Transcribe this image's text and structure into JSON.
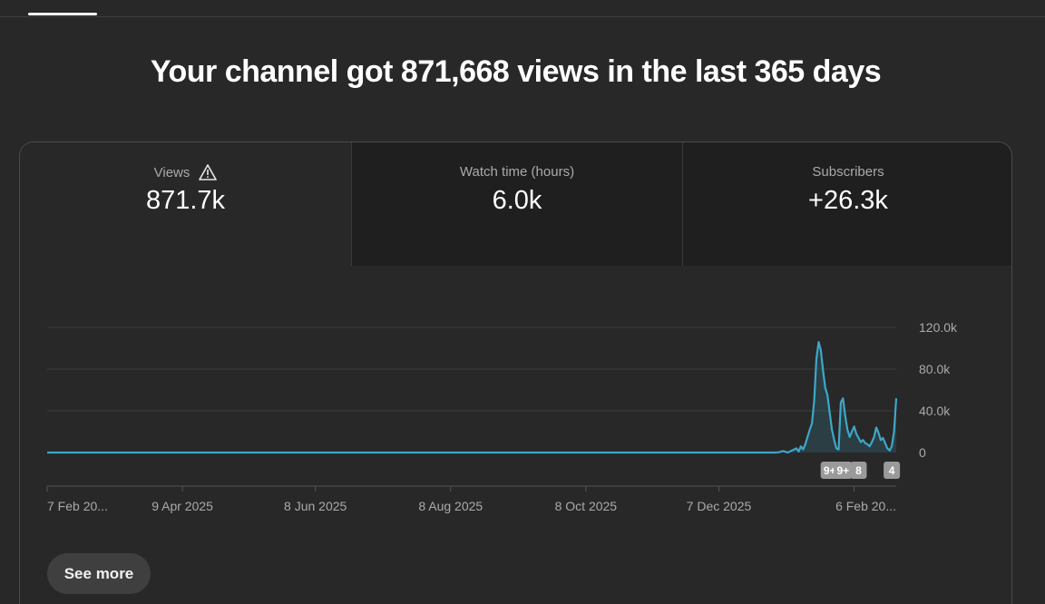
{
  "headline": "Your channel got 871,668 views in the last 365 days",
  "metrics": [
    {
      "label": "Views",
      "value": "871.7k",
      "warning_icon": "warning-triangle-icon",
      "active": true
    },
    {
      "label": "Watch time (hours)",
      "value": "6.0k",
      "active": false
    },
    {
      "label": "Subscribers",
      "value": "+26.3k",
      "active": false
    }
  ],
  "chart_data": {
    "type": "area",
    "series": [
      {
        "values": [
          [
            0,
            0
          ],
          [
            328,
            0
          ],
          [
            330,
            300
          ],
          [
            332,
            1500
          ],
          [
            334,
            0
          ],
          [
            336,
            2000
          ],
          [
            338,
            4000
          ],
          [
            339,
            1000
          ],
          [
            340,
            6000
          ],
          [
            341,
            3000
          ],
          [
            342,
            8000
          ],
          [
            343,
            15000
          ],
          [
            344,
            22000
          ],
          [
            345,
            28000
          ],
          [
            346,
            50000
          ],
          [
            347,
            90000
          ],
          [
            348,
            106000
          ],
          [
            349,
            98000
          ],
          [
            350,
            78000
          ],
          [
            351,
            62000
          ],
          [
            352,
            55000
          ],
          [
            353,
            38000
          ],
          [
            354,
            22000
          ],
          [
            355,
            12000
          ],
          [
            356,
            4000
          ],
          [
            357,
            3000
          ],
          [
            358,
            48000
          ],
          [
            359,
            52000
          ],
          [
            360,
            35000
          ],
          [
            361,
            22000
          ],
          [
            362,
            15000
          ],
          [
            363,
            20000
          ],
          [
            364,
            25000
          ],
          [
            365,
            18000
          ],
          [
            366,
            14000
          ],
          [
            367,
            10000
          ],
          [
            368,
            12000
          ],
          [
            369,
            9000
          ],
          [
            370,
            8000
          ],
          [
            371,
            6000
          ],
          [
            372,
            10000
          ],
          [
            373,
            15000
          ],
          [
            374,
            24000
          ],
          [
            375,
            19000
          ],
          [
            376,
            12000
          ],
          [
            377,
            14000
          ],
          [
            378,
            9000
          ],
          [
            379,
            4000
          ],
          [
            380,
            2000
          ],
          [
            381,
            6000
          ],
          [
            382,
            20000
          ],
          [
            383,
            52000
          ]
        ]
      }
    ],
    "x_labels": [
      "7 Feb 20...",
      "9 Apr 2025",
      "8 Jun 2025",
      "8 Aug 2025",
      "8 Oct 2025",
      "7 Dec 2025",
      "6 Feb 20..."
    ],
    "x_label_days": [
      0,
      61,
      121,
      182,
      243,
      303,
      364
    ],
    "x_range": [
      0,
      383
    ],
    "y_ticks": [
      "120.0k",
      "80.0k",
      "40.0k",
      "0"
    ],
    "y_tick_values": [
      120000,
      80000,
      40000,
      0
    ],
    "ylim": [
      0,
      120000
    ],
    "line_color": "#3ea6c8",
    "grid": true,
    "markers": [
      {
        "label": "9+",
        "x": 353
      },
      {
        "label": "9+",
        "x": 359
      },
      {
        "label": "8",
        "x": 366
      },
      {
        "label": "4",
        "x": 381
      }
    ]
  },
  "see_more_label": "See more"
}
